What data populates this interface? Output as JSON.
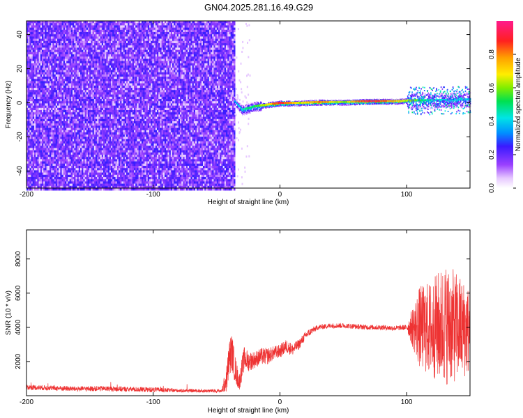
{
  "title": "GN04.2025.281.16.49.G29",
  "chart_data": [
    {
      "type": "heatmap",
      "xlabel": "Height of straight line (km)",
      "ylabel": "Frequency (Hz)",
      "xlim": [
        -200,
        150
      ],
      "ylim": [
        -50,
        48
      ],
      "x_ticks": [
        "-200",
        "-100",
        "0",
        "100"
      ],
      "x_tick_values": [
        -200,
        -100,
        0,
        100
      ],
      "y_ticks": [
        "-40",
        "-20",
        "0",
        "20",
        "40"
      ],
      "y_tick_values": [
        -40,
        -20,
        0,
        20,
        40
      ],
      "noise_region": {
        "x_start": -200,
        "x_end": -36
      },
      "signal_trace": [
        {
          "x": -36,
          "f": 1.0,
          "amp": 0.35
        },
        {
          "x": -30,
          "f": -4.0,
          "amp": 0.45
        },
        {
          "x": -20,
          "f": -2.0,
          "amp": 0.55
        },
        {
          "x": -10,
          "f": -1.0,
          "amp": 0.7
        },
        {
          "x": 0,
          "f": 0.0,
          "amp": 0.95
        },
        {
          "x": 15,
          "f": 0.0,
          "amp": 0.65
        },
        {
          "x": 30,
          "f": 0.5,
          "amp": 0.85
        },
        {
          "x": 50,
          "f": 0.5,
          "amp": 0.6
        },
        {
          "x": 70,
          "f": 1.0,
          "amp": 0.98
        },
        {
          "x": 90,
          "f": 1.0,
          "amp": 0.75
        },
        {
          "x": 105,
          "f": 1.5,
          "amp": 0.6
        },
        {
          "x": 120,
          "f": 1.5,
          "amp": 0.45
        },
        {
          "x": 150,
          "f": 2.0,
          "amp": 0.4
        }
      ],
      "colorbar": {
        "label": "Normalized spectral amplitude",
        "ticks": [
          "0.0",
          "0.2",
          "0.4",
          "0.6",
          "0.8"
        ],
        "tick_values": [
          0.0,
          0.2,
          0.4,
          0.6,
          0.8
        ],
        "range": [
          0,
          1
        ]
      }
    },
    {
      "type": "line",
      "xlabel": "Height of straight line (km)",
      "ylabel": "SNR (10 * v/v)",
      "xlim": [
        -200,
        150
      ],
      "ylim": [
        0,
        9700
      ],
      "x_ticks": [
        "-200",
        "-100",
        "0",
        "100"
      ],
      "x_tick_values": [
        -200,
        -100,
        0,
        100
      ],
      "y_ticks": [
        "2000",
        "4000",
        "6000",
        "8000"
      ],
      "y_tick_values": [
        2000,
        4000,
        6000,
        8000
      ],
      "color": "#ee3333",
      "series": [
        {
          "x": [
            -200,
            -180,
            -160,
            -140,
            -120,
            -100,
            -80,
            -60,
            -46,
            -42,
            -40,
            -38,
            -36,
            -34,
            -32,
            -30,
            -28,
            -25,
            -20,
            -15,
            -10,
            -5,
            0,
            5,
            10,
            15,
            20,
            25,
            30,
            40,
            50,
            60,
            70,
            80,
            90,
            100,
            110,
            120,
            130,
            140,
            150
          ],
          "values": [
            500,
            450,
            400,
            420,
            380,
            350,
            300,
            280,
            280,
            1000,
            2200,
            2600,
            1800,
            1200,
            800,
            1600,
            2200,
            2000,
            2100,
            2300,
            2300,
            2500,
            2600,
            2900,
            2700,
            3000,
            3500,
            3800,
            4000,
            4100,
            4100,
            4050,
            4000,
            4000,
            3950,
            4000,
            4000,
            3900,
            4200,
            4000,
            3800
          ],
          "noise": [
            150,
            150,
            150,
            150,
            150,
            150,
            100,
            100,
            100,
            800,
            1100,
            1100,
            900,
            700,
            500,
            700,
            700,
            600,
            500,
            500,
            500,
            400,
            400,
            400,
            350,
            300,
            250,
            200,
            150,
            150,
            150,
            150,
            150,
            150,
            150,
            150,
            2400,
            2900,
            3600,
            3200,
            2600
          ]
        }
      ]
    }
  ]
}
